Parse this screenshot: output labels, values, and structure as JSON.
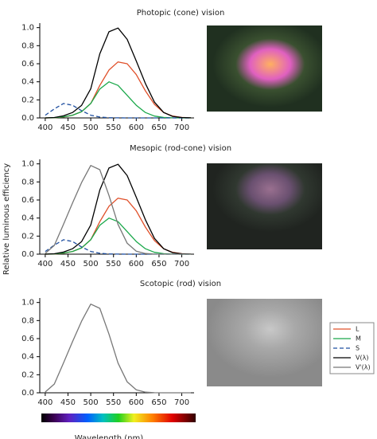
{
  "chart_data": [
    {
      "type": "line",
      "title": "Photopic (cone) vision",
      "x": [
        400,
        420,
        440,
        460,
        480,
        500,
        520,
        540,
        560,
        580,
        600,
        620,
        640,
        660,
        680,
        700,
        720
      ],
      "xlim": [
        388,
        727
      ],
      "xticks": [
        400,
        450,
        500,
        550,
        600,
        650,
        700
      ],
      "ylim": [
        0,
        1.05
      ],
      "yticks": [
        {
          "value": 0,
          "label": "0.0"
        },
        {
          "value": 0.2,
          "label": "0.2"
        },
        {
          "value": 0.4,
          "label": "0.4"
        },
        {
          "value": 0.6,
          "label": "0.6"
        },
        {
          "value": 0.8,
          "label": "0.8"
        },
        {
          "value": 1,
          "label": "1.0"
        }
      ],
      "series": [
        {
          "name": "L",
          "color": "#e0502a",
          "values": [
            0,
            0.002,
            0.01,
            0.03,
            0.07,
            0.16,
            0.36,
            0.53,
            0.62,
            0.6,
            0.48,
            0.3,
            0.15,
            0.06,
            0.02,
            0.005,
            0.001
          ]
        },
        {
          "name": "M",
          "color": "#1aa84a",
          "values": [
            0,
            0.003,
            0.012,
            0.03,
            0.07,
            0.16,
            0.32,
            0.4,
            0.36,
            0.25,
            0.14,
            0.06,
            0.02,
            0.005,
            0.001,
            0,
            0
          ]
        },
        {
          "name": "S",
          "color": "#1f4fa0",
          "dashed": true,
          "values": [
            0.03,
            0.1,
            0.16,
            0.14,
            0.08,
            0.03,
            0.01,
            0.003,
            0.001,
            0,
            0,
            0,
            0,
            0,
            0,
            0,
            0
          ]
        },
        {
          "name": "V(λ)",
          "color": "#000000",
          "values": [
            0,
            0.004,
            0.023,
            0.06,
            0.139,
            0.323,
            0.71,
            0.954,
            0.995,
            0.87,
            0.631,
            0.381,
            0.175,
            0.061,
            0.017,
            0.004,
            0.001
          ]
        }
      ]
    },
    {
      "type": "line",
      "title": "Mesopic (rod-cone) vision",
      "y_label": "Relative luminous efficiency",
      "x": [
        400,
        420,
        440,
        460,
        480,
        500,
        520,
        540,
        560,
        580,
        600,
        620,
        640,
        660,
        680,
        700,
        720
      ],
      "xlim": [
        388,
        727
      ],
      "xticks": [
        400,
        450,
        500,
        550,
        600,
        650,
        700
      ],
      "ylim": [
        0,
        1.05
      ],
      "yticks": [
        {
          "value": 0,
          "label": "0.0"
        },
        {
          "value": 0.2,
          "label": "0.2"
        },
        {
          "value": 0.4,
          "label": "0.4"
        },
        {
          "value": 0.6,
          "label": "0.6"
        },
        {
          "value": 0.8,
          "label": "0.8"
        },
        {
          "value": 1,
          "label": "1.0"
        }
      ],
      "series": [
        {
          "name": "L",
          "color": "#e0502a",
          "values": [
            0,
            0.002,
            0.01,
            0.03,
            0.07,
            0.16,
            0.36,
            0.53,
            0.62,
            0.6,
            0.48,
            0.3,
            0.15,
            0.06,
            0.02,
            0.005,
            0.001
          ]
        },
        {
          "name": "M",
          "color": "#1aa84a",
          "values": [
            0,
            0.003,
            0.012,
            0.03,
            0.07,
            0.16,
            0.32,
            0.4,
            0.36,
            0.25,
            0.14,
            0.06,
            0.02,
            0.005,
            0.001,
            0,
            0
          ]
        },
        {
          "name": "S",
          "color": "#1f4fa0",
          "dashed": true,
          "values": [
            0.03,
            0.1,
            0.16,
            0.14,
            0.08,
            0.03,
            0.01,
            0.003,
            0.001,
            0,
            0,
            0,
            0,
            0,
            0,
            0,
            0
          ]
        },
        {
          "name": "V(λ)",
          "color": "#000000",
          "values": [
            0,
            0.004,
            0.023,
            0.06,
            0.139,
            0.323,
            0.71,
            0.954,
            0.995,
            0.87,
            0.631,
            0.381,
            0.175,
            0.061,
            0.017,
            0.004,
            0.001
          ]
        },
        {
          "name": "V'(λ)",
          "color": "#777777",
          "values": [
            0.009,
            0.097,
            0.33,
            0.567,
            0.793,
            0.982,
            0.935,
            0.65,
            0.329,
            0.121,
            0.033,
            0.007,
            0.001,
            0,
            0,
            0,
            0
          ]
        }
      ]
    },
    {
      "type": "line",
      "title": "Scotopic (rod) vision",
      "x_label": "Wavelength (nm)",
      "x": [
        400,
        420,
        440,
        460,
        480,
        500,
        520,
        540,
        560,
        580,
        600,
        620,
        640,
        660,
        680,
        700,
        720
      ],
      "xlim": [
        388,
        727
      ],
      "xticks": [
        400,
        450,
        500,
        550,
        600,
        650,
        700
      ],
      "ylim": [
        0,
        1.05
      ],
      "yticks": [
        {
          "value": 0,
          "label": "0.0"
        },
        {
          "value": 0.2,
          "label": "0.2"
        },
        {
          "value": 0.4,
          "label": "0.4"
        },
        {
          "value": 0.6,
          "label": "0.6"
        },
        {
          "value": 0.8,
          "label": "0.8"
        },
        {
          "value": 1,
          "label": "1.0"
        }
      ],
      "series": [
        {
          "name": "V'(λ)",
          "color": "#777777",
          "values": [
            0.009,
            0.097,
            0.33,
            0.567,
            0.793,
            0.982,
            0.935,
            0.65,
            0.329,
            0.121,
            0.033,
            0.007,
            0.001,
            0,
            0,
            0,
            0
          ]
        }
      ]
    }
  ]
}
